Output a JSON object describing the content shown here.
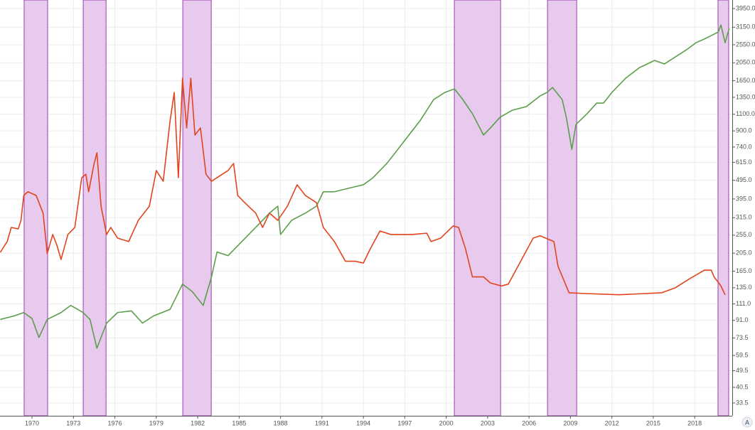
{
  "chart_data": {
    "type": "line",
    "xlim": [
      1967.68,
      2020.72
    ],
    "xticks": [
      1970,
      1973,
      1976,
      1979,
      1982,
      1985,
      1988,
      1991,
      1994,
      1997,
      2000,
      2003,
      2006,
      2009,
      2012,
      2015,
      2018
    ],
    "ylim": [
      28.7,
      4380
    ],
    "log_scale": true,
    "grid": true,
    "yticks": [
      {
        "value": 3950,
        "label": "3950.0"
      },
      {
        "value": 3150,
        "label": "3150.0"
      },
      {
        "value": 2550,
        "label": "2550.0"
      },
      {
        "value": 2050,
        "label": "2050.0"
      },
      {
        "value": 1650,
        "label": "1650.0"
      },
      {
        "value": 1350,
        "label": "1350.0"
      },
      {
        "value": 1100,
        "label": "1100.0"
      },
      {
        "value": 900,
        "label": "900.0"
      },
      {
        "value": 740,
        "label": "740.0"
      },
      {
        "value": 615,
        "label": "615.0"
      },
      {
        "value": 495,
        "label": "495.0"
      },
      {
        "value": 395,
        "label": "395.0"
      },
      {
        "value": 315,
        "label": "315.0"
      },
      {
        "value": 255,
        "label": "255.0"
      },
      {
        "value": 205,
        "label": "205.0"
      },
      {
        "value": 165,
        "label": "165.0"
      },
      {
        "value": 135,
        "label": "135.0"
      },
      {
        "value": 111,
        "label": "111.0"
      },
      {
        "value": 91,
        "label": "91.0"
      },
      73.5,
      59.5,
      49.5,
      40.5,
      33.5
    ],
    "shaded_ranges": [
      [
        1969.43,
        1971.13
      ],
      [
        1973.71,
        1975.36
      ],
      [
        1980.92,
        1982.98
      ],
      [
        2000.59,
        2003.94
      ],
      [
        2007.34,
        2009.45
      ],
      [
        2019.69,
        2020.46
      ]
    ],
    "shade_color": "#e7caee",
    "shade_border": "#9a3fb0",
    "series": [
      {
        "color": "#5b9e4c",
        "x": [
          1967.7,
          1968.7,
          1969.4,
          1970.0,
          1970.5,
          1971.1,
          1972.1,
          1972.8,
          1973.3,
          1973.7,
          1974.2,
          1974.7,
          1975.4,
          1976.2,
          1977.2,
          1978.0,
          1978.8,
          1980.0,
          1980.9,
          1981.6,
          1982.4,
          1983.0,
          1983.4,
          1984.2,
          1985.2,
          1986.2,
          1987.2,
          1987.8,
          1988.0,
          1988.8,
          1989.8,
          1990.6,
          1991.1,
          1991.9,
          1992.9,
          1994.0,
          1994.7,
          1995.7,
          1996.5,
          1997.3,
          1998.1,
          1999.1,
          1999.9,
          2000.6,
          2001.2,
          2001.9,
          2002.7,
          2003.2,
          2003.9,
          2004.8,
          2005.8,
          2006.8,
          2007.3,
          2007.7,
          2008.4,
          2008.7,
          2009.1,
          2009.4,
          2010.2,
          2010.9,
          2011.4,
          2012.0,
          2013.0,
          2014.0,
          2015.1,
          2015.8,
          2016.6,
          2017.4,
          2018.1,
          2018.7,
          2019.2,
          2019.7,
          2019.9,
          2020.2,
          2020.5
        ],
        "values": [
          92,
          96,
          100,
          93,
          74,
          92,
          100,
          109,
          104,
          100,
          92,
          65,
          88,
          100,
          102,
          88,
          96,
          104,
          141,
          129,
          109,
          154,
          208,
          199,
          236,
          280,
          333,
          362,
          257,
          305,
          333,
          362,
          431,
          431,
          449,
          469,
          511,
          607,
          720,
          856,
          1016,
          1315,
          1432,
          1495,
          1315,
          1107,
          856,
          932,
          1061,
          1156,
          1206,
          1373,
          1432,
          1521,
          1315,
          1061,
          720,
          973,
          1107,
          1259,
          1259,
          1432,
          1701,
          1934,
          2109,
          2020,
          2201,
          2398,
          2614,
          2733,
          2849,
          2972,
          3240,
          2614,
          3104
        ]
      },
      {
        "color": "#e2441d",
        "x": [
          1967.7,
          1968.2,
          1968.5,
          1969.0,
          1969.2,
          1969.4,
          1969.7,
          1970.3,
          1970.8,
          1971.1,
          1971.5,
          1971.8,
          1972.1,
          1972.6,
          1973.1,
          1973.6,
          1973.9,
          1974.1,
          1974.5,
          1974.7,
          1975.0,
          1975.4,
          1975.7,
          1976.2,
          1977.0,
          1977.7,
          1978.5,
          1979.0,
          1979.5,
          1980.0,
          1980.3,
          1980.6,
          1980.9,
          1981.2,
          1981.5,
          1981.8,
          1982.2,
          1982.6,
          1983.0,
          1983.4,
          1984.2,
          1984.6,
          1984.9,
          1985.4,
          1986.2,
          1986.7,
          1987.2,
          1987.8,
          1988.5,
          1989.2,
          1989.8,
          1990.6,
          1991.1,
          1991.9,
          1992.7,
          1993.4,
          1994.0,
          1994.5,
          1995.2,
          1996.0,
          1996.8,
          1997.5,
          1998.6,
          1998.9,
          1999.6,
          2000.5,
          2000.9,
          2001.4,
          2001.9,
          2002.7,
          2003.2,
          2004.0,
          2004.5,
          2006.3,
          2006.8,
          2007.8,
          2008.1,
          2008.9,
          2009.9,
          2012.5,
          2015.6,
          2016.6,
          2017.6,
          2018.7,
          2019.2,
          2019.4,
          2019.9,
          2020.2
        ],
        "values": [
          207,
          236,
          280,
          275,
          305,
          412,
          431,
          412,
          333,
          204,
          257,
          226,
          190,
          257,
          280,
          511,
          533,
          431,
          607,
          690,
          362,
          257,
          280,
          246,
          236,
          305,
          362,
          557,
          489,
          1016,
          1432,
          511,
          1701,
          932,
          1701,
          856,
          932,
          533,
          489,
          511,
          557,
          607,
          412,
          378,
          333,
          280,
          333,
          305,
          362,
          469,
          412,
          378,
          280,
          236,
          186,
          186,
          182,
          216,
          268,
          257,
          257,
          257,
          261,
          236,
          246,
          285,
          280,
          216,
          154,
          154,
          143,
          138,
          141,
          246,
          253,
          236,
          175,
          127,
          126,
          124,
          127,
          135,
          150,
          167,
          167,
          154,
          138,
          124
        ]
      }
    ]
  },
  "ui": {
    "auto_button": "A"
  }
}
